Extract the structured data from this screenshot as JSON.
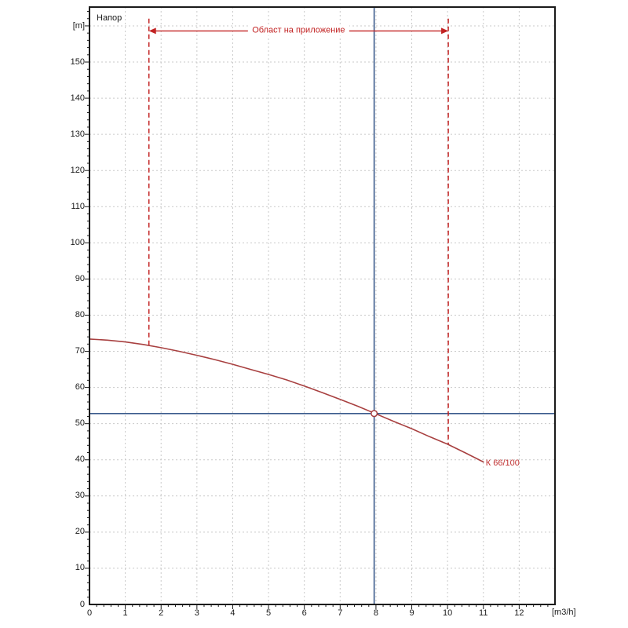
{
  "colors": {
    "curve": "#a84040",
    "accent_red": "#c22222",
    "crosshair_blue": "#3a5a8c",
    "grid": "#c9c9c9",
    "axis": "#1a1a1a",
    "marker_fill": "#ffffff",
    "background": "#ffffff"
  },
  "chart_data": {
    "type": "line",
    "title": "",
    "ylabel": "Напор",
    "y_unit": "[m]",
    "x_unit": "[m3/h]",
    "xlim": [
      0,
      13
    ],
    "ylim": [
      0,
      165.2
    ],
    "grid": true,
    "x_major_ticks": [
      0,
      1,
      2,
      3,
      4,
      5,
      6,
      7,
      8,
      9,
      10,
      11,
      12
    ],
    "y_major_ticks": [
      0,
      10,
      20,
      30,
      40,
      50,
      60,
      70,
      80,
      90,
      100,
      110,
      120,
      130,
      140,
      150
    ],
    "x_minor_step": 0.2,
    "y_minor_step": 2,
    "series": [
      {
        "name": "К 66/100",
        "color": "#a84040",
        "points": [
          [
            0,
            73.4
          ],
          [
            0.5,
            73.1
          ],
          [
            1,
            72.6
          ],
          [
            1.5,
            71.9
          ],
          [
            2,
            71.0
          ],
          [
            2.5,
            70.0
          ],
          [
            3,
            68.9
          ],
          [
            3.5,
            67.7
          ],
          [
            4,
            66.4
          ],
          [
            4.5,
            65.0
          ],
          [
            5,
            63.6
          ],
          [
            5.5,
            62.1
          ],
          [
            6,
            60.4
          ],
          [
            6.5,
            58.6
          ],
          [
            7,
            56.7
          ],
          [
            7.5,
            54.8
          ],
          [
            8,
            52.7
          ],
          [
            8.5,
            50.6
          ],
          [
            9,
            48.6
          ],
          [
            9.5,
            46.4
          ],
          [
            10,
            44.3
          ],
          [
            10.5,
            41.9
          ],
          [
            11,
            39.4
          ]
        ]
      }
    ],
    "annotations": {
      "application_range": {
        "label": "Област на приложение",
        "x_from": 1.66,
        "x_to": 10.02,
        "line_top_h": 162,
        "curve_h_from": 71.2,
        "curve_h_to": 44.3,
        "arrow_h": 158.6
      },
      "operating_point": {
        "q": 7.95,
        "h": 52.8
      },
      "crosshair": {
        "x": 7.95,
        "y": 52.8
      }
    }
  }
}
